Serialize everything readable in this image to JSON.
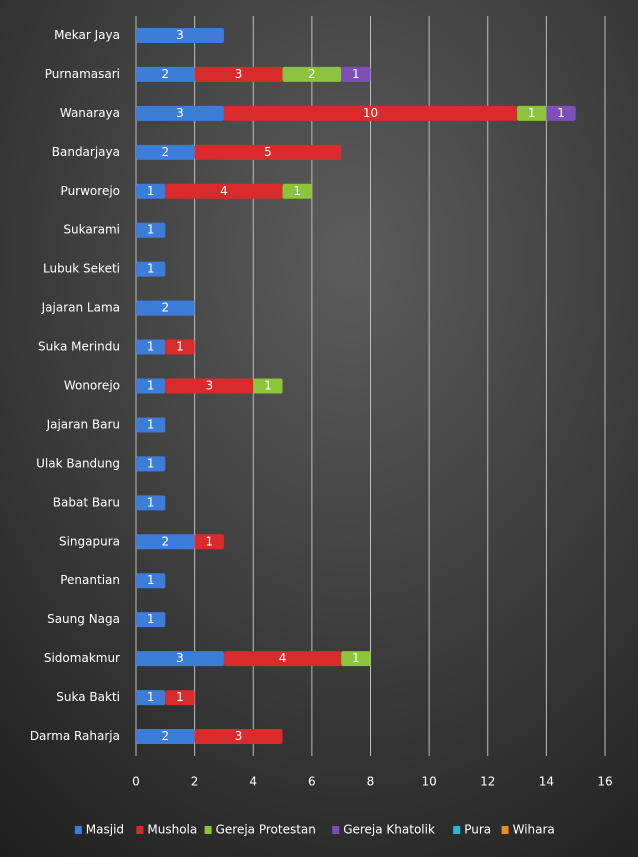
{
  "chart_data": {
    "type": "stacked_barh",
    "categories": [
      "Mekar Jaya",
      "Purnamasari",
      "Wanaraya",
      "Bandarjaya",
      "Purworejo",
      "Sukarami",
      "Lubuk Seketi",
      "Jajaran Lama",
      "Suka Merindu",
      "Wonorejo",
      "Jajaran Baru",
      "Ulak Bandung",
      "Babat Baru",
      "Singapura",
      "Penantian",
      "Saung Naga",
      "Sidomakmur",
      "Suka Bakti",
      "Darma Raharja"
    ],
    "series": [
      {
        "name": "Masjid",
        "color": "#3c7dd9",
        "values": [
          3,
          2,
          3,
          2,
          1,
          1,
          1,
          2,
          1,
          1,
          1,
          1,
          1,
          2,
          1,
          1,
          3,
          1,
          2
        ]
      },
      {
        "name": "Mushola",
        "color": "#d92b2b",
        "values": [
          null,
          3,
          10,
          5,
          4,
          null,
          null,
          null,
          1,
          3,
          null,
          null,
          null,
          1,
          null,
          null,
          4,
          1,
          3
        ]
      },
      {
        "name": "Gereja Protestan",
        "color": "#8cc43c",
        "values": [
          null,
          2,
          1,
          null,
          1,
          null,
          null,
          null,
          null,
          1,
          null,
          null,
          null,
          null,
          null,
          null,
          1,
          null,
          null
        ]
      },
      {
        "name": "Gereja Khatolik",
        "color": "#7e4fb8",
        "values": [
          null,
          1,
          1,
          null,
          null,
          null,
          null,
          null,
          null,
          null,
          null,
          null,
          null,
          null,
          null,
          null,
          null,
          null,
          null
        ]
      },
      {
        "name": "Pura",
        "color": "#2bb7d9",
        "values": [
          null,
          null,
          null,
          null,
          null,
          null,
          null,
          null,
          null,
          null,
          null,
          null,
          null,
          null,
          null,
          null,
          null,
          null,
          null
        ]
      },
      {
        "name": "Wihara",
        "color": "#f08a24",
        "values": [
          null,
          null,
          null,
          null,
          null,
          null,
          null,
          null,
          null,
          null,
          null,
          null,
          null,
          null,
          null,
          null,
          null,
          null,
          null
        ]
      }
    ],
    "xlim": [
      0,
      16
    ],
    "xticks": [
      0,
      2,
      4,
      6,
      8,
      10,
      12,
      14,
      16
    ],
    "grid": true,
    "legend": "bottom"
  }
}
